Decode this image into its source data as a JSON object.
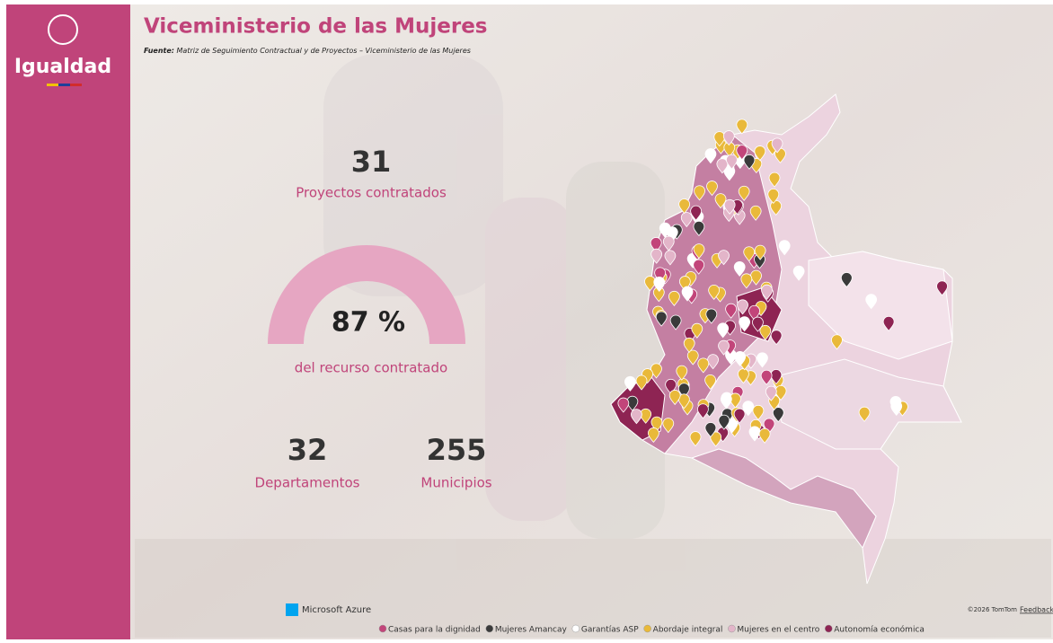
{
  "header": {
    "logo": "Igualdad",
    "title": "Viceministerio de las Mujeres",
    "source_label": "Fuente:",
    "source_text": "Matriz de Seguimiento Contractual y de Proyectos – Viceministerio de las Mujeres"
  },
  "kpis": {
    "projects": {
      "value": "31",
      "label": "Proyectos contratados"
    },
    "gauge": {
      "value": "87 %",
      "label": "del recurso contratado"
    },
    "departments": {
      "value": "32",
      "label": "Departamentos"
    },
    "municipalities": {
      "value": "255",
      "label": "Municipios"
    }
  },
  "map": {
    "attribution_left": "Microsoft Azure",
    "attribution_right": "©2026 TomTom",
    "feedback": "Feedback",
    "legend": [
      {
        "name": "Casas para la dignidad",
        "color": "#c2457a"
      },
      {
        "name": "Mujeres Amancay",
        "color": "#3a3a3a"
      },
      {
        "name": "Garantías ASP",
        "color": "#ffffff"
      },
      {
        "name": "Abordaje integral",
        "color": "#e9b93a"
      },
      {
        "name": "Mujeres en el centro",
        "color": "#e3b5c9"
      },
      {
        "name": "Autonomía económica",
        "color": "#8e2453"
      }
    ]
  }
}
